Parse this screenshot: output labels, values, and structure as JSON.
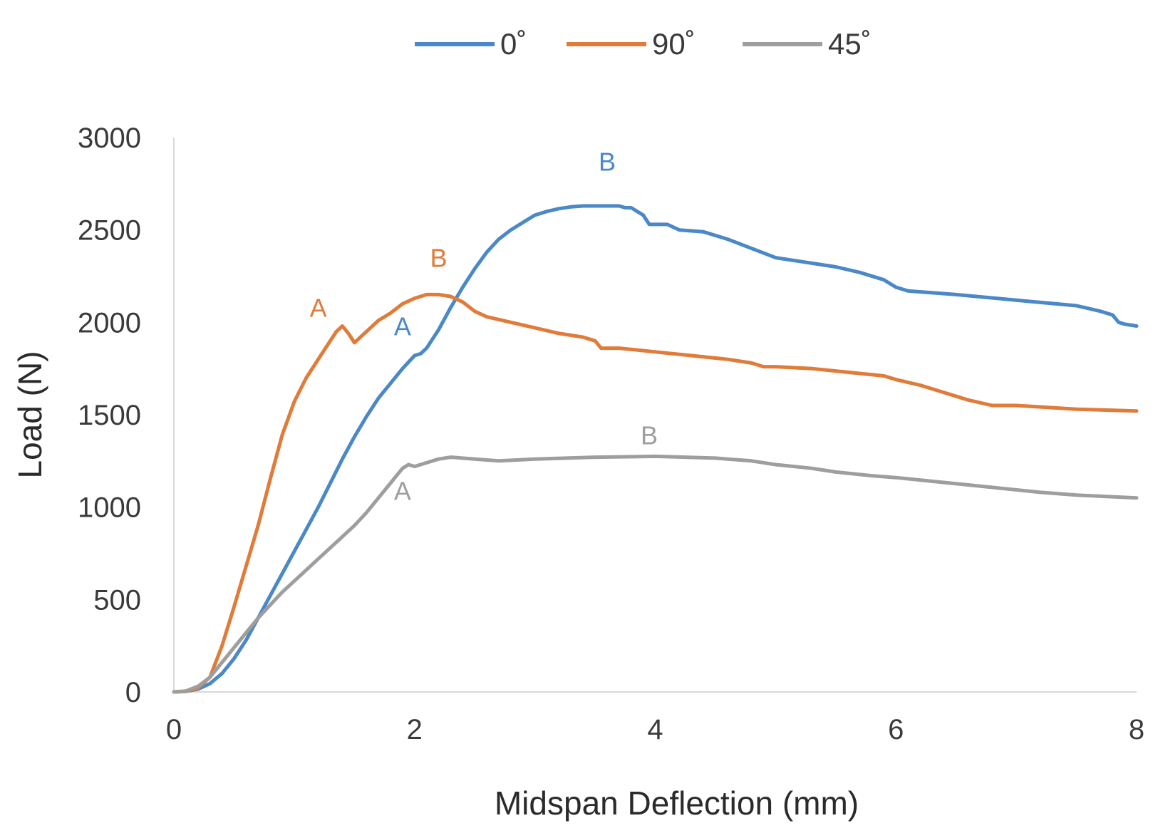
{
  "chart_data": {
    "type": "line",
    "xlabel": "Midspan  Deflection (mm)",
    "ylabel": "Load (N)",
    "xlim": [
      0,
      8
    ],
    "ylim": [
      0,
      3000
    ],
    "xticks": [
      "0",
      "2",
      "4",
      "6",
      "8"
    ],
    "yticks": [
      "0",
      "500",
      "1000",
      "1500",
      "2000",
      "2500",
      "3000"
    ],
    "grid": false,
    "legend_position": "top",
    "series": [
      {
        "name": "0˚",
        "color": "#4a88c7",
        "points": [
          [
            0,
            0
          ],
          [
            0.1,
            3
          ],
          [
            0.2,
            15
          ],
          [
            0.3,
            45
          ],
          [
            0.4,
            100
          ],
          [
            0.5,
            180
          ],
          [
            0.6,
            280
          ],
          [
            0.7,
            400
          ],
          [
            0.8,
            520
          ],
          [
            0.9,
            640
          ],
          [
            1.0,
            760
          ],
          [
            1.1,
            880
          ],
          [
            1.2,
            1000
          ],
          [
            1.3,
            1130
          ],
          [
            1.4,
            1260
          ],
          [
            1.5,
            1380
          ],
          [
            1.6,
            1490
          ],
          [
            1.7,
            1590
          ],
          [
            1.8,
            1670
          ],
          [
            1.9,
            1750
          ],
          [
            2.0,
            1820
          ],
          [
            2.05,
            1830
          ],
          [
            2.1,
            1860
          ],
          [
            2.2,
            1960
          ],
          [
            2.3,
            2080
          ],
          [
            2.4,
            2190
          ],
          [
            2.5,
            2290
          ],
          [
            2.6,
            2380
          ],
          [
            2.7,
            2450
          ],
          [
            2.8,
            2500
          ],
          [
            2.9,
            2540
          ],
          [
            3.0,
            2580
          ],
          [
            3.1,
            2600
          ],
          [
            3.2,
            2615
          ],
          [
            3.3,
            2625
          ],
          [
            3.4,
            2630
          ],
          [
            3.5,
            2630
          ],
          [
            3.6,
            2630
          ],
          [
            3.7,
            2630
          ],
          [
            3.75,
            2620
          ],
          [
            3.8,
            2620
          ],
          [
            3.85,
            2600
          ],
          [
            3.9,
            2580
          ],
          [
            3.95,
            2530
          ],
          [
            4.0,
            2530
          ],
          [
            4.1,
            2530
          ],
          [
            4.2,
            2500
          ],
          [
            4.4,
            2490
          ],
          [
            4.6,
            2450
          ],
          [
            4.8,
            2400
          ],
          [
            5.0,
            2350
          ],
          [
            5.3,
            2320
          ],
          [
            5.5,
            2300
          ],
          [
            5.7,
            2270
          ],
          [
            5.9,
            2230
          ],
          [
            6.0,
            2190
          ],
          [
            6.1,
            2170
          ],
          [
            6.5,
            2150
          ],
          [
            7.0,
            2120
          ],
          [
            7.5,
            2090
          ],
          [
            7.7,
            2060
          ],
          [
            7.8,
            2040
          ],
          [
            7.85,
            2000
          ],
          [
            7.9,
            1990
          ],
          [
            8.0,
            1980
          ]
        ]
      },
      {
        "name": "90˚",
        "color": "#e07b39",
        "points": [
          [
            0,
            0
          ],
          [
            0.1,
            3
          ],
          [
            0.2,
            20
          ],
          [
            0.3,
            80
          ],
          [
            0.4,
            250
          ],
          [
            0.5,
            460
          ],
          [
            0.6,
            680
          ],
          [
            0.7,
            900
          ],
          [
            0.8,
            1150
          ],
          [
            0.9,
            1390
          ],
          [
            1.0,
            1570
          ],
          [
            1.1,
            1700
          ],
          [
            1.2,
            1800
          ],
          [
            1.3,
            1900
          ],
          [
            1.35,
            1950
          ],
          [
            1.4,
            1980
          ],
          [
            1.45,
            1940
          ],
          [
            1.5,
            1890
          ],
          [
            1.6,
            1950
          ],
          [
            1.7,
            2010
          ],
          [
            1.8,
            2050
          ],
          [
            1.9,
            2100
          ],
          [
            2.0,
            2130
          ],
          [
            2.1,
            2150
          ],
          [
            2.2,
            2150
          ],
          [
            2.3,
            2140
          ],
          [
            2.4,
            2110
          ],
          [
            2.5,
            2060
          ],
          [
            2.6,
            2030
          ],
          [
            2.8,
            2000
          ],
          [
            3.0,
            1970
          ],
          [
            3.2,
            1940
          ],
          [
            3.4,
            1920
          ],
          [
            3.5,
            1900
          ],
          [
            3.55,
            1860
          ],
          [
            3.7,
            1860
          ],
          [
            4.0,
            1840
          ],
          [
            4.3,
            1820
          ],
          [
            4.6,
            1800
          ],
          [
            4.8,
            1780
          ],
          [
            4.9,
            1760
          ],
          [
            5.0,
            1760
          ],
          [
            5.3,
            1750
          ],
          [
            5.6,
            1730
          ],
          [
            5.9,
            1710
          ],
          [
            6.0,
            1690
          ],
          [
            6.2,
            1660
          ],
          [
            6.4,
            1620
          ],
          [
            6.6,
            1580
          ],
          [
            6.8,
            1550
          ],
          [
            7.0,
            1550
          ],
          [
            7.5,
            1530
          ],
          [
            8.0,
            1520
          ]
        ]
      },
      {
        "name": "45˚",
        "color": "#9e9e9e",
        "points": [
          [
            0,
            0
          ],
          [
            0.1,
            5
          ],
          [
            0.2,
            30
          ],
          [
            0.3,
            80
          ],
          [
            0.4,
            160
          ],
          [
            0.5,
            240
          ],
          [
            0.6,
            320
          ],
          [
            0.7,
            400
          ],
          [
            0.8,
            470
          ],
          [
            0.9,
            540
          ],
          [
            1.0,
            600
          ],
          [
            1.1,
            660
          ],
          [
            1.2,
            720
          ],
          [
            1.3,
            780
          ],
          [
            1.4,
            840
          ],
          [
            1.5,
            900
          ],
          [
            1.6,
            970
          ],
          [
            1.7,
            1050
          ],
          [
            1.8,
            1130
          ],
          [
            1.85,
            1170
          ],
          [
            1.9,
            1210
          ],
          [
            1.95,
            1230
          ],
          [
            2.0,
            1220
          ],
          [
            2.1,
            1240
          ],
          [
            2.2,
            1260
          ],
          [
            2.3,
            1270
          ],
          [
            2.5,
            1260
          ],
          [
            2.7,
            1250
          ],
          [
            3.0,
            1260
          ],
          [
            3.5,
            1270
          ],
          [
            4.0,
            1275
          ],
          [
            4.5,
            1265
          ],
          [
            4.8,
            1250
          ],
          [
            5.0,
            1230
          ],
          [
            5.3,
            1210
          ],
          [
            5.5,
            1190
          ],
          [
            5.8,
            1170
          ],
          [
            6.0,
            1160
          ],
          [
            6.3,
            1140
          ],
          [
            6.6,
            1120
          ],
          [
            6.9,
            1100
          ],
          [
            7.2,
            1080
          ],
          [
            7.5,
            1065
          ],
          [
            8.0,
            1050
          ]
        ]
      }
    ],
    "annotations": [
      {
        "text": "B",
        "series": "0˚",
        "x": 3.6,
        "y": 2820
      },
      {
        "text": "A",
        "series": "0˚",
        "x": 1.9,
        "y": 1930
      },
      {
        "text": "B",
        "series": "90˚",
        "x": 2.2,
        "y": 2300
      },
      {
        "text": "A",
        "series": "90˚",
        "x": 1.2,
        "y": 2030
      },
      {
        "text": "B",
        "series": "45˚",
        "x": 3.95,
        "y": 1340
      },
      {
        "text": "A",
        "series": "45˚",
        "x": 1.9,
        "y": 1040
      }
    ]
  }
}
